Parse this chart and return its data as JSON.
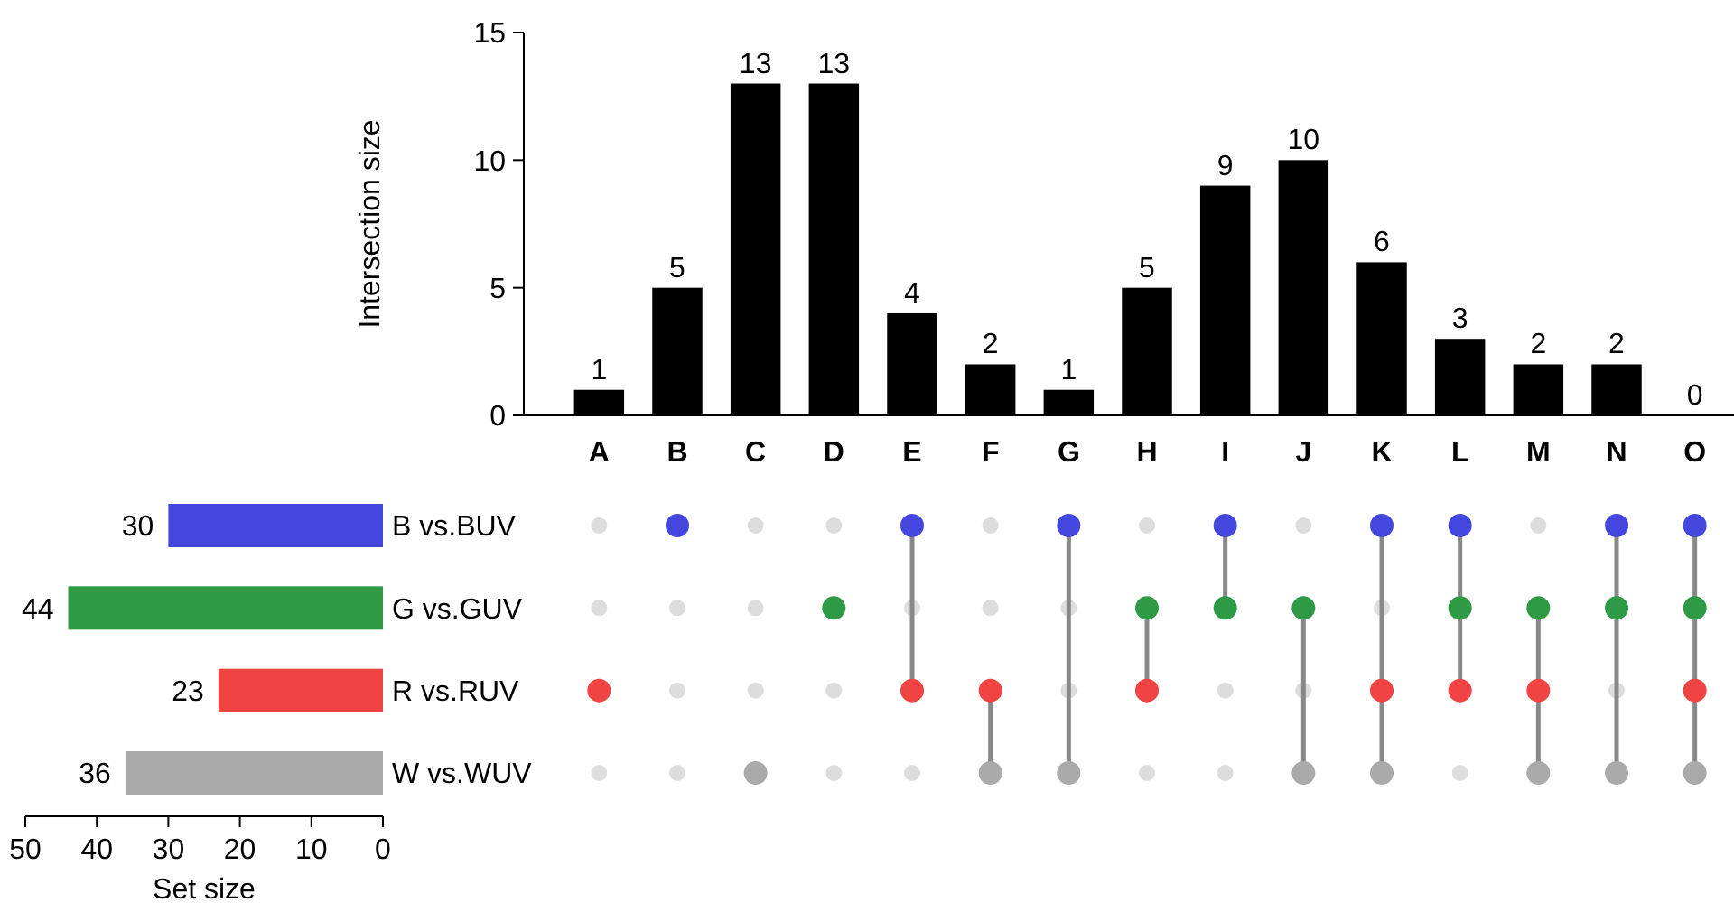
{
  "chart_data": [
    {
      "type": "bar",
      "categories": [
        "A",
        "B",
        "C",
        "D",
        "E",
        "F",
        "G",
        "H",
        "I",
        "J",
        "K",
        "L",
        "M",
        "N",
        "O"
      ],
      "values": [
        1,
        5,
        13,
        13,
        4,
        2,
        1,
        5,
        9,
        10,
        6,
        3,
        2,
        2,
        0
      ],
      "color": "#000000",
      "ylim": [
        0,
        15
      ],
      "yticks": [
        0,
        5,
        10,
        15
      ],
      "ylabel": "Intersection size",
      "data_labels": true
    },
    {
      "type": "bar",
      "orientation": "horizontal",
      "categories": [
        "B vs.BUV",
        "G vs.GUV",
        "R vs.RUV",
        "W vs.WUV"
      ],
      "values": [
        30,
        44,
        23,
        36
      ],
      "colors": [
        "#4347dd",
        "#2e9a46",
        "#f04444",
        "#aaaaaa"
      ],
      "xlim": [
        50,
        0
      ],
      "xticks": [
        50,
        40,
        30,
        20,
        10,
        0
      ],
      "xlabel": "Set size",
      "data_labels": true
    },
    {
      "type": "other",
      "colors": [
        "#4347dd",
        "#2e9a46",
        "#f04444",
        "#aaaaaa"
      ],
      "cells": [
        [
          false,
          true,
          false,
          false,
          true,
          false,
          true,
          false,
          true,
          false,
          true,
          true,
          false,
          true,
          true
        ],
        [
          false,
          false,
          false,
          true,
          false,
          false,
          false,
          true,
          true,
          true,
          false,
          true,
          true,
          true,
          true
        ],
        [
          true,
          false,
          false,
          false,
          true,
          true,
          false,
          true,
          false,
          false,
          true,
          true,
          true,
          false,
          true
        ],
        [
          false,
          false,
          true,
          false,
          false,
          true,
          true,
          false,
          false,
          true,
          true,
          false,
          true,
          true,
          true
        ]
      ]
    }
  ]
}
